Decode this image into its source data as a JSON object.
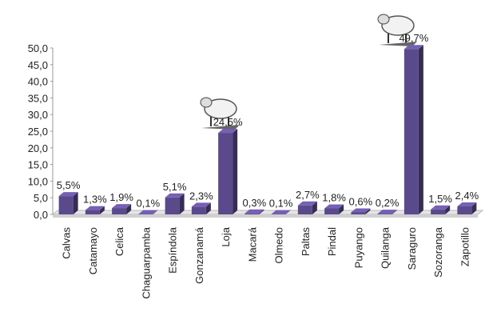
{
  "chart_data": {
    "type": "bar",
    "categories": [
      "Calvas",
      "Catamayo",
      "Celica",
      "Chaguarpamba",
      "Espíndola",
      "Gonzanamá",
      "Loja",
      "Macará",
      "Olmedo",
      "Paltas",
      "Pindal",
      "Puyango",
      "Quilanga",
      "Saraguro",
      "Sozoranga",
      "Zapotillo"
    ],
    "values": [
      5.5,
      1.3,
      1.9,
      0.1,
      5.1,
      2.3,
      24.5,
      0.3,
      0.1,
      2.7,
      1.8,
      0.6,
      0.2,
      49.7,
      1.5,
      2.4
    ],
    "value_labels": [
      "5,5%",
      "1,3%",
      "1,9%",
      "0,1%",
      "5,1%",
      "2,3%",
      "24,5%",
      "0,3%",
      "0,1%",
      "2,7%",
      "1,8%",
      "0,6%",
      "0,2%",
      "49,7%",
      "1,5%",
      "2,4%"
    ],
    "color": "#5b4a8b",
    "ylim": [
      0,
      50
    ],
    "yticks": [
      {
        "value": 0,
        "label": "0,0"
      },
      {
        "value": 5,
        "label": "5,0"
      },
      {
        "value": 10,
        "label": "10,0"
      },
      {
        "value": 15,
        "label": "15,0"
      },
      {
        "value": 20,
        "label": "20,0"
      },
      {
        "value": 25,
        "label": "25,0"
      },
      {
        "value": 30,
        "label": "30,0"
      },
      {
        "value": 35,
        "label": "35,0"
      },
      {
        "value": 40,
        "label": "40,0"
      },
      {
        "value": 45,
        "label": "45,0"
      },
      {
        "value": 50,
        "label": "50,0"
      }
    ],
    "grid": false
  }
}
